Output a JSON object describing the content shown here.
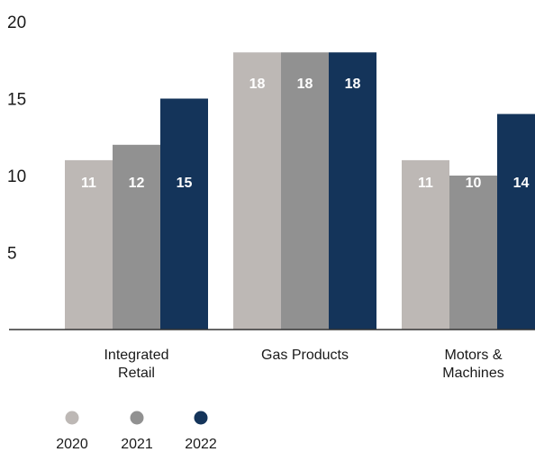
{
  "chart_data": {
    "type": "bar",
    "categories": [
      [
        "Integrated",
        "Retail"
      ],
      [
        "Gas Products"
      ],
      [
        "Motors &",
        "Machines"
      ]
    ],
    "series": [
      {
        "name": "2020",
        "values": [
          11,
          18,
          11
        ],
        "color": "#bdb8b5"
      },
      {
        "name": "2021",
        "values": [
          12,
          18,
          10
        ],
        "color": "#919191"
      },
      {
        "name": "2022",
        "values": [
          15,
          18,
          14
        ],
        "color": "#14345a"
      }
    ],
    "data_labels": [
      [
        "11",
        "18",
        "11"
      ],
      [
        "12",
        "18",
        "10"
      ],
      [
        "15",
        "18",
        "14"
      ]
    ],
    "yticks": [
      "20",
      "15",
      "10",
      "5"
    ],
    "ytick_values": [
      20,
      15,
      10,
      5
    ],
    "ylim": [
      0,
      20
    ],
    "grid": false,
    "legend_position": "bottom-left"
  }
}
